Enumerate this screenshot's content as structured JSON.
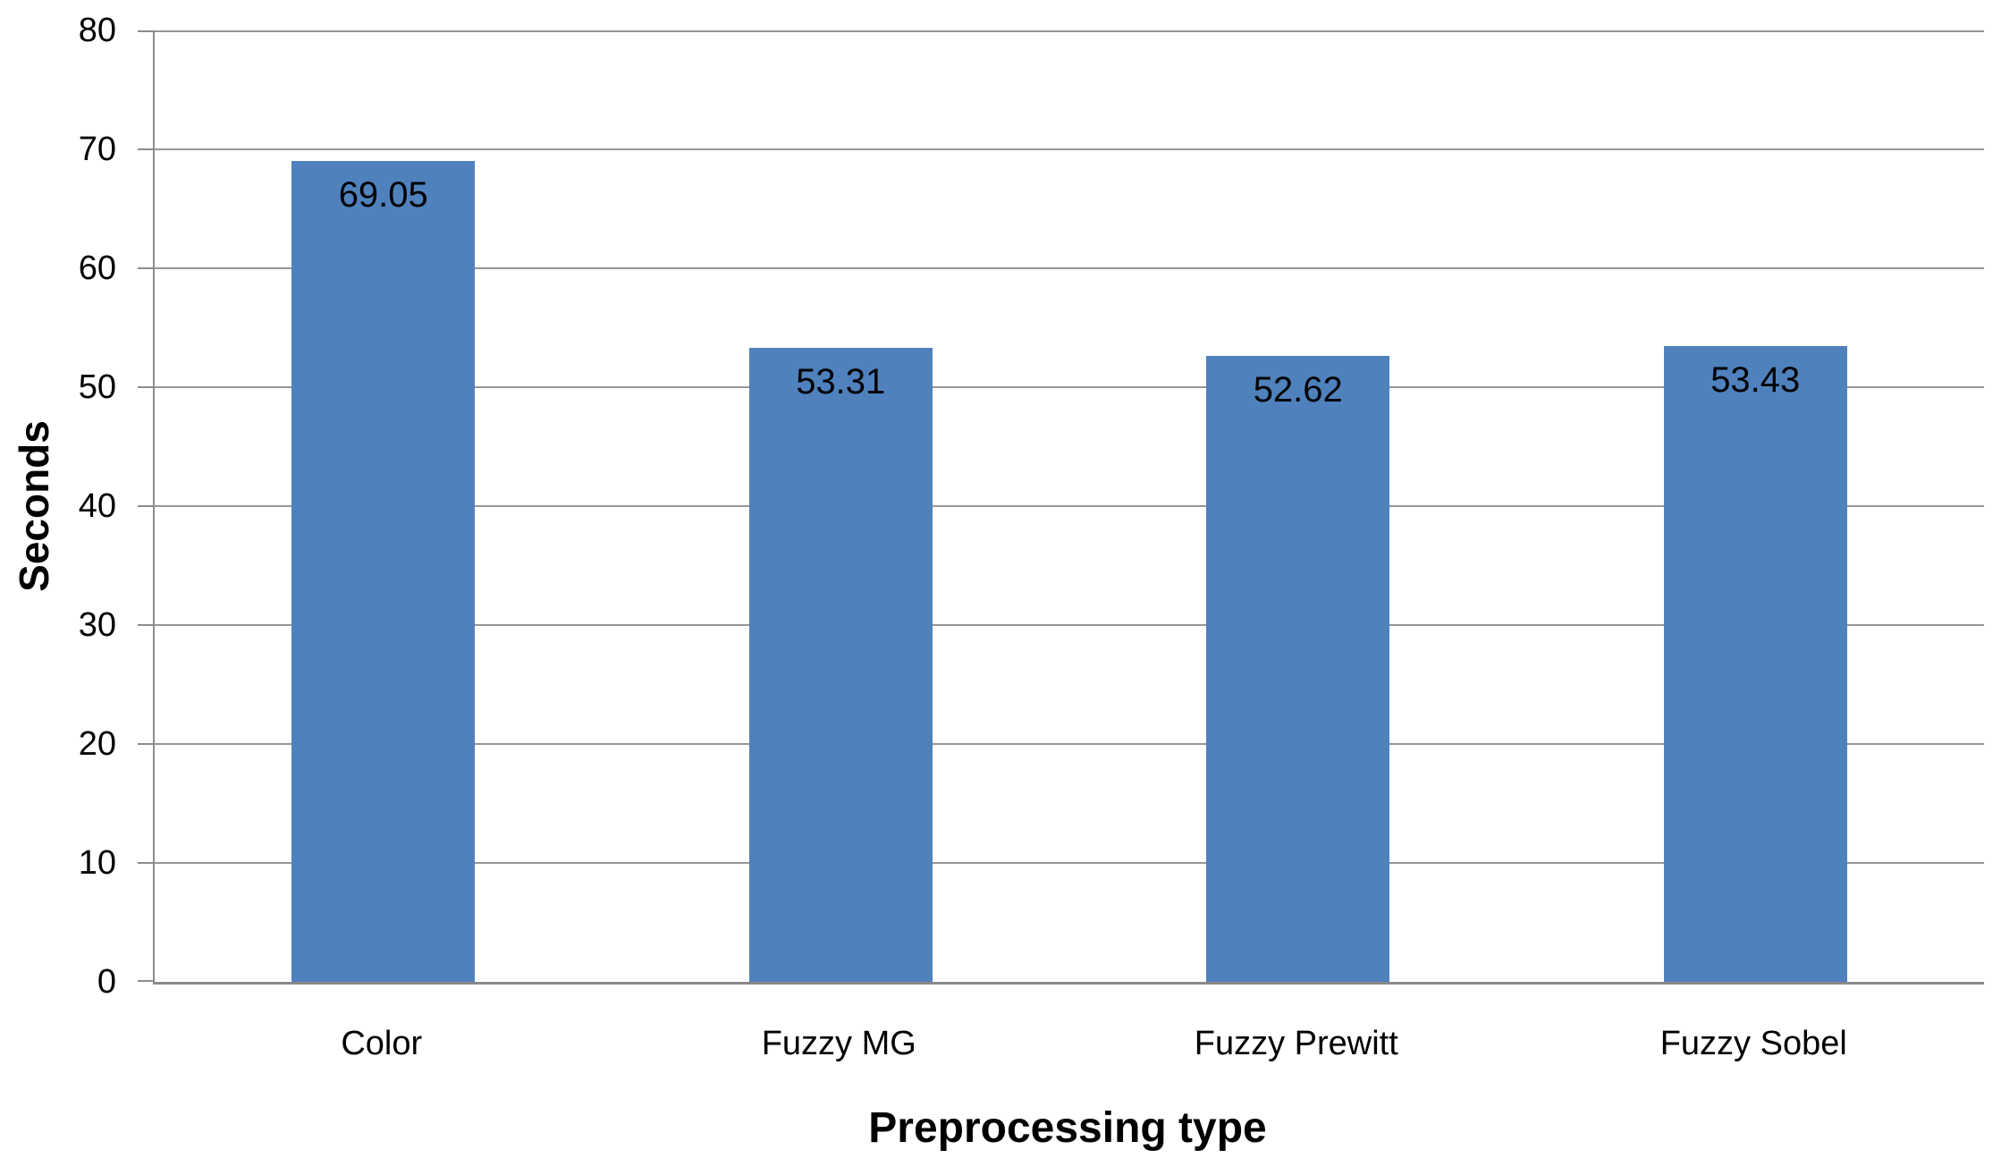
{
  "chart_data": {
    "type": "bar",
    "title": "",
    "xlabel": "Preprocessing type",
    "ylabel": "Seconds",
    "categories": [
      "Color",
      "Fuzzy MG",
      "Fuzzy Prewitt",
      "Fuzzy Sobel"
    ],
    "values": [
      69.05,
      53.31,
      52.62,
      53.43
    ],
    "value_labels": [
      "69.05",
      "53.31",
      "52.62",
      "53.43"
    ],
    "ylim": [
      0,
      80
    ],
    "yticks": [
      0,
      10,
      20,
      30,
      40,
      50,
      60,
      70,
      80
    ],
    "grid": "horizontal",
    "legend_position": "none",
    "value_label_position": "inside-end",
    "colors": {
      "bar": "#4F81BD",
      "gridline": "#969696",
      "axis": "#8c8c8c",
      "text": "#000000"
    }
  }
}
